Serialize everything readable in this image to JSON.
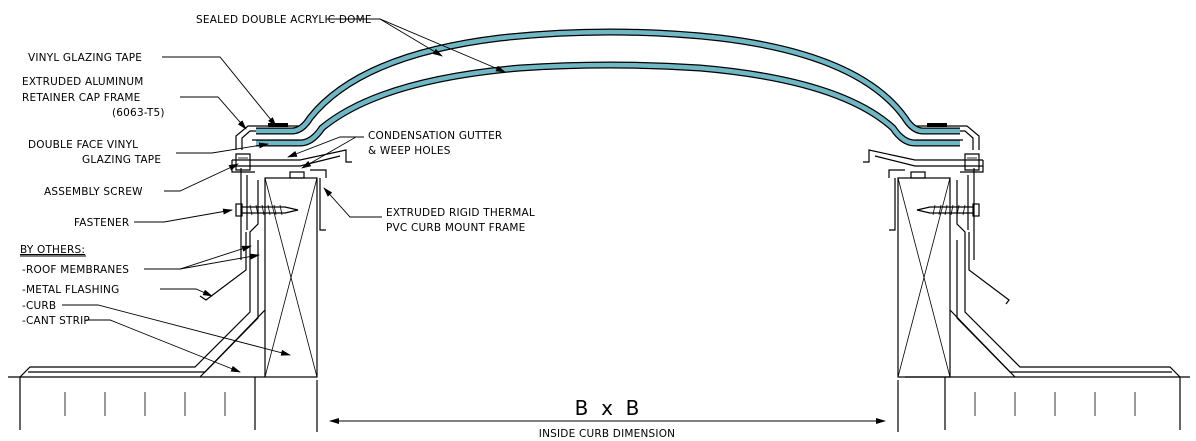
{
  "colors": {
    "dome": "#6fb7c4",
    "line": "#000000",
    "background": "#ffffff"
  },
  "labels": {
    "dome": "SEALED DOUBLE ACRYLIC DOME",
    "vinyl_tape": "VINYL GLAZING TAPE",
    "retainer_1": "EXTRUDED ALUMINUM",
    "retainer_2": "RETAINER CAP FRAME",
    "retainer_3": "(6063-T5)",
    "double_tape_1": "DOUBLE FACE VINYL",
    "double_tape_2": "GLAZING TAPE",
    "screw": "ASSEMBLY SCREW",
    "fastener": "FASTENER",
    "gutter_1": "CONDENSATION GUTTER",
    "gutter_2": "& WEEP HOLES",
    "curb_frame_1": "EXTRUDED RIGID THERMAL",
    "curb_frame_2": "PVC CURB MOUNT FRAME",
    "by_others": "BY OTHERS:",
    "roof": "-ROOF MEMBRANES",
    "flashing": "-METAL FLASHING",
    "curb": "-CURB",
    "cant": "-CANT STRIP",
    "dimension": "B  x  B",
    "dimension_caption": "INSIDE CURB DIMENSION"
  }
}
